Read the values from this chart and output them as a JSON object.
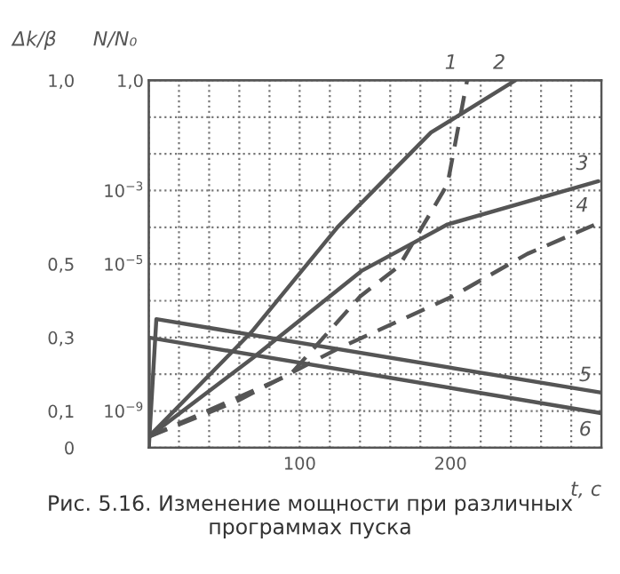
{
  "chart_data": {
    "type": "line",
    "xlabel": "t, c",
    "ylabel": "Δk/β",
    "y2label": "N/N₀",
    "xlim": [
      0,
      300
    ],
    "xticks": [
      {
        "value": 0,
        "label": null
      },
      {
        "value": 20,
        "label": null
      },
      {
        "value": 40,
        "label": null
      },
      {
        "value": 60,
        "label": null
      },
      {
        "value": 80,
        "label": null
      },
      100,
      {
        "value": 120,
        "label": null
      },
      {
        "value": 140,
        "label": null
      },
      {
        "value": 160,
        "label": null
      },
      {
        "value": 180,
        "label": null
      },
      200,
      {
        "value": 220,
        "label": null
      },
      {
        "value": 240,
        "label": null
      },
      {
        "value": 260,
        "label": null
      },
      {
        "value": 280,
        "label": null
      },
      {
        "value": 300,
        "label": null
      }
    ],
    "ylim": [
      0,
      1.0
    ],
    "yticks": [
      {
        "value": 0,
        "label": "0"
      },
      {
        "value": 0.1,
        "label": "0,1"
      },
      {
        "value": 0.2,
        "label": null
      },
      {
        "value": 0.3,
        "label": "0,3"
      },
      {
        "value": 0.4,
        "label": null
      },
      {
        "value": 0.5,
        "label": "0,5"
      },
      {
        "value": 0.6,
        "label": null
      },
      {
        "value": 0.7,
        "label": null
      },
      {
        "value": 0.8,
        "label": null
      },
      {
        "value": 0.9,
        "label": null
      },
      {
        "value": 1.0,
        "label": "1,0"
      }
    ],
    "y2lim": [
      1e-10,
      1.0
    ],
    "y2ticks": [
      {
        "value": 1e-09,
        "label": "10$^{−9}$"
      },
      {
        "value": 1e-05,
        "label": "10$^{−5}$"
      },
      {
        "value": 0.001,
        "label": "10$^{−3}$"
      },
      {
        "value": 1.0,
        "label": "1,0"
      }
    ],
    "log": "y2",
    "grid": true,
    "marker": "none",
    "series": [
      {
        "name": "1",
        "color": "#555555",
        "axis": "y2",
        "line_style": "dashed",
        "x": [
          0,
          94,
          140,
          166,
          198,
          211
        ],
        "values": [
          2e-10,
          1e-08,
          1.3e-06,
          8.9e-06,
          0.0015,
          1.0
        ]
      },
      {
        "name": "2",
        "color": "#555555",
        "axis": "y2",
        "line_style": "solid",
        "x": [
          0,
          68,
          125,
          187,
          243
        ],
        "values": [
          2e-10,
          1.4e-07,
          0.0001,
          0.038,
          1.0
        ]
      },
      {
        "name": "3",
        "color": "#555555",
        "axis": "y2",
        "line_style": "solid",
        "x": [
          0,
          69,
          141,
          198,
          298
        ],
        "values": [
          2e-10,
          2.8e-08,
          6.5e-06,
          0.00012,
          0.0018
        ]
      },
      {
        "name": "4",
        "color": "#555555",
        "axis": "y2",
        "line_style": "dashed",
        "x": [
          0,
          59,
          125,
          201,
          251,
          298
        ],
        "values": [
          2e-10,
          1.9e-09,
          4.9e-08,
          1.3e-06,
          1.9e-05,
          0.00013
        ]
      },
      {
        "name": "5",
        "color": "#555555",
        "line_style": "solid",
        "x": [
          0,
          5,
          300
        ],
        "values": [
          0,
          0.35,
          0.15
        ]
      },
      {
        "name": "6",
        "color": "#555555",
        "line_style": "solid",
        "x": [
          0,
          0,
          300
        ],
        "values": [
          0,
          0.3,
          0.094
        ]
      }
    ],
    "annotations": [
      "Рис. 5.16. Изменение мощности при различных программах пуска"
    ]
  }
}
